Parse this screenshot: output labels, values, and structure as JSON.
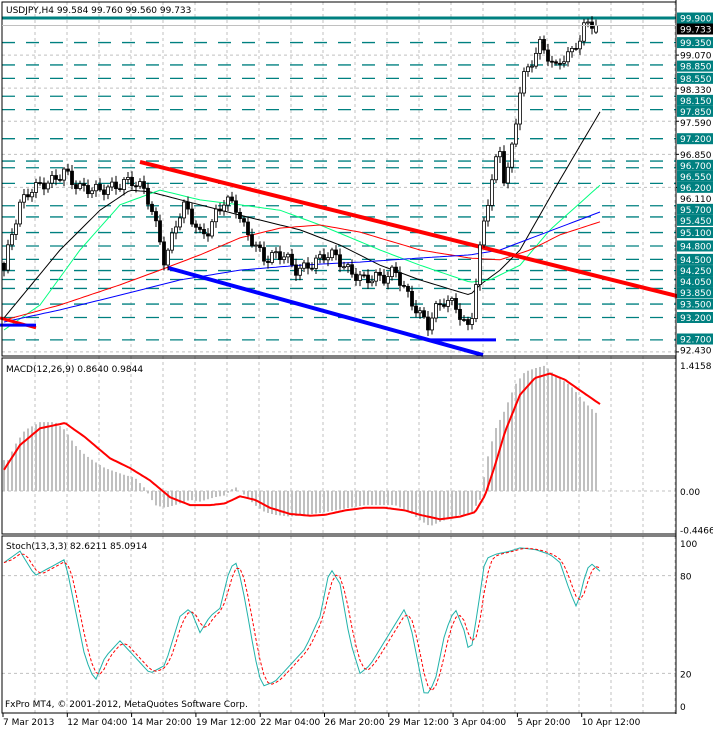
{
  "header": {
    "symbol_info": "USDJPY,H4  99.584 99.760 99.560 99.733"
  },
  "footer": {
    "copyright": "FxPro MT4, © 2001-2012, MetaQuotes Software Corp."
  },
  "colors": {
    "level": "#008080",
    "trend_red": "#ff0000",
    "trend_blue": "#0000ff",
    "ma_black": "#000000",
    "ma_green": "#00ff7f",
    "ma_red": "#ff0000",
    "ma_blue": "#0000ff",
    "histogram": "#c0c0c0",
    "stoch_main": "#20b2aa",
    "stoch_signal": "#ff0000"
  },
  "chart_data": [
    {
      "type": "candlestick",
      "title": "USDJPY,H4",
      "ohlc_last": {
        "open": 99.584,
        "high": 99.76,
        "low": 99.56,
        "close": 99.733
      },
      "current_price_label": "99.733",
      "ylim": [
        92.43,
        100.25
      ],
      "axis_ticks": [
        "99.070",
        "98.330",
        "97.590",
        "96.850",
        "96.110",
        "92.430"
      ],
      "levels": [
        "99.900",
        "99.350",
        "98.850",
        "98.550",
        "98.150",
        "97.850",
        "97.200",
        "96.700",
        "96.550",
        "96.200",
        "95.700",
        "95.450",
        "95.100",
        "94.800",
        "94.500",
        "94.250",
        "94.050",
        "93.850",
        "93.500",
        "93.200",
        "92.700"
      ],
      "close_keypoints": [
        [
          0,
          94.26
        ],
        [
          1.5,
          94.93
        ],
        [
          4,
          95.72
        ],
        [
          6.5,
          96.05
        ],
        [
          9,
          96.16
        ],
        [
          12.75,
          96.28
        ],
        [
          15.25,
          96.5
        ],
        [
          16.5,
          96.28
        ],
        [
          19,
          96.1
        ],
        [
          24,
          96.05
        ],
        [
          29,
          96.16
        ],
        [
          31.5,
          96.28
        ],
        [
          35.25,
          96.05
        ],
        [
          36.5,
          95.72
        ],
        [
          39,
          94.93
        ],
        [
          40.25,
          94.37
        ],
        [
          42.75,
          95.27
        ],
        [
          45.25,
          95.72
        ],
        [
          49,
          95.05
        ],
        [
          51.5,
          95.16
        ],
        [
          52.75,
          95.49
        ],
        [
          55.25,
          95.83
        ],
        [
          57.75,
          95.72
        ],
        [
          60.25,
          95.16
        ],
        [
          62.75,
          94.82
        ],
        [
          65.25,
          94.49
        ],
        [
          67.75,
          94.6
        ],
        [
          70.25,
          94.6
        ],
        [
          72.75,
          94.26
        ],
        [
          75.25,
          94.31
        ],
        [
          77.75,
          94.44
        ],
        [
          80.25,
          94.6
        ],
        [
          82.75,
          94.6
        ],
        [
          85.25,
          94.31
        ],
        [
          87.75,
          94.15
        ],
        [
          90.25,
          94.04
        ],
        [
          92.75,
          94.11
        ],
        [
          95.25,
          94.08
        ],
        [
          97.75,
          94.26
        ],
        [
          100.25,
          93.81
        ],
        [
          101.5,
          93.59
        ],
        [
          104,
          93.26
        ],
        [
          106,
          93.03
        ],
        [
          107.75,
          93.37
        ],
        [
          110.25,
          93.59
        ],
        [
          112.75,
          93.48
        ],
        [
          115.25,
          93.03
        ],
        [
          116.5,
          92.92
        ],
        [
          117.75,
          93.81
        ],
        [
          119,
          94.71
        ],
        [
          120.25,
          95.49
        ],
        [
          121.5,
          96.05
        ],
        [
          122.75,
          96.61
        ],
        [
          124,
          96.95
        ],
        [
          125.25,
          96.16
        ],
        [
          126.5,
          96.72
        ],
        [
          127.75,
          97.39
        ],
        [
          128.5,
          98.07
        ],
        [
          129.5,
          98.51
        ],
        [
          131.5,
          98.85
        ],
        [
          134,
          99.3
        ],
        [
          135.25,
          99.18
        ],
        [
          136.5,
          98.96
        ],
        [
          137.75,
          98.74
        ],
        [
          139,
          98.96
        ],
        [
          141.5,
          99.07
        ],
        [
          142.75,
          99.3
        ],
        [
          144,
          99.41
        ],
        [
          145.25,
          99.74
        ],
        [
          146.5,
          99.86
        ],
        [
          147.75,
          99.68
        ],
        [
          148.5,
          99.733
        ]
      ],
      "moving_averages": [
        {
          "name": "ma-black",
          "color": "#000000",
          "points": [
            [
              0,
              93.19
            ],
            [
              14,
              94.71
            ],
            [
              24,
              95.6
            ],
            [
              31.5,
              96.05
            ],
            [
              36.5,
              96.01
            ],
            [
              49,
              95.72
            ],
            [
              59,
              95.49
            ],
            [
              74,
              95.16
            ],
            [
              84,
              94.82
            ],
            [
              94,
              94.37
            ],
            [
              104,
              94.04
            ],
            [
              116.5,
              93.7
            ],
            [
              119,
              93.93
            ],
            [
              124,
              94.26
            ],
            [
              129,
              94.71
            ],
            [
              139,
              96.28
            ],
            [
              149,
              97.8
            ]
          ]
        },
        {
          "name": "ma-green",
          "color": "#00ff7f",
          "points": [
            [
              0,
              92.92
            ],
            [
              9,
              93.48
            ],
            [
              19,
              94.71
            ],
            [
              29,
              95.72
            ],
            [
              39,
              96.05
            ],
            [
              49,
              95.83
            ],
            [
              59,
              95.72
            ],
            [
              69,
              95.6
            ],
            [
              79,
              95.27
            ],
            [
              94,
              94.71
            ],
            [
              104,
              94.37
            ],
            [
              116.5,
              93.99
            ],
            [
              121.5,
              94.04
            ],
            [
              129,
              94.37
            ],
            [
              136.5,
              95.16
            ],
            [
              149,
              96.16
            ]
          ]
        },
        {
          "name": "ma-red",
          "color": "#ff0000",
          "points": [
            [
              0,
              93.14
            ],
            [
              14,
              93.48
            ],
            [
              29,
              93.93
            ],
            [
              39,
              94.26
            ],
            [
              49,
              94.6
            ],
            [
              59,
              94.98
            ],
            [
              69,
              95.2
            ],
            [
              79,
              95.27
            ],
            [
              89,
              95.11
            ],
            [
              104,
              94.71
            ],
            [
              116.5,
              94.53
            ],
            [
              124,
              94.49
            ],
            [
              131.5,
              94.71
            ],
            [
              139,
              95.05
            ],
            [
              149,
              95.34
            ]
          ]
        },
        {
          "name": "ma-blue",
          "color": "#0000ff",
          "points": [
            [
              0,
              93.1
            ],
            [
              14,
              93.37
            ],
            [
              29,
              93.7
            ],
            [
              44,
              94.04
            ],
            [
              59,
              94.26
            ],
            [
              74,
              94.37
            ],
            [
              89,
              94.44
            ],
            [
              104,
              94.53
            ],
            [
              116.5,
              94.6
            ],
            [
              124,
              94.71
            ],
            [
              134,
              95.05
            ],
            [
              149,
              95.56
            ]
          ]
        }
      ],
      "trendlines": [
        {
          "name": "resistance-trendline",
          "color": "#ff0000",
          "from": [
            34,
            96.68
          ],
          "to": [
            177.25,
            93.48
          ]
        },
        {
          "name": "support-trendline",
          "color": "#0000ff",
          "from": [
            41,
            94.31
          ],
          "to": [
            119.75,
            92.36
          ]
        },
        {
          "name": "support-horizontal",
          "color": "#0000ff",
          "from": [
            106.5,
            92.7
          ],
          "to": [
            123,
            92.7
          ]
        },
        {
          "name": "left-red-segment",
          "color": "#ff0000",
          "from": [
            -1,
            93.19
          ],
          "to": [
            8,
            92.97
          ]
        },
        {
          "name": "left-blue-segment",
          "color": "#0000ff",
          "from": [
            -1,
            93.03
          ],
          "to": [
            8,
            93.03
          ]
        }
      ]
    },
    {
      "type": "bar+line",
      "title": "MACD(12,26,9) 0.8640 0.9844",
      "ylim": [
        -0.4466,
        1.4158
      ],
      "tick_labels": [
        "1.4158",
        "0.00",
        "-0.4466"
      ],
      "histogram_keypoints": [
        [
          1,
          0.35
        ],
        [
          2.75,
          0.52
        ],
        [
          5.25,
          0.69
        ],
        [
          7.75,
          0.75
        ],
        [
          9,
          0.78
        ],
        [
          12.75,
          0.78
        ],
        [
          15.25,
          0.69
        ],
        [
          17.75,
          0.52
        ],
        [
          20.25,
          0.41
        ],
        [
          22.75,
          0.33
        ],
        [
          25.25,
          0.26
        ],
        [
          27.75,
          0.22
        ],
        [
          30.25,
          0.18
        ],
        [
          32.75,
          0.15
        ],
        [
          35.25,
          0.03
        ],
        [
          37.75,
          -0.16
        ],
        [
          40.25,
          -0.19
        ],
        [
          42.75,
          -0.16
        ],
        [
          46.5,
          -0.1
        ],
        [
          49,
          -0.12
        ],
        [
          52.75,
          -0.07
        ],
        [
          55.25,
          -0.05
        ],
        [
          57.75,
          0.05
        ],
        [
          60.25,
          -0.05
        ],
        [
          62.75,
          -0.16
        ],
        [
          65.25,
          -0.24
        ],
        [
          67.75,
          -0.27
        ],
        [
          71.5,
          -0.29
        ],
        [
          75.25,
          -0.27
        ],
        [
          79,
          -0.25
        ],
        [
          82.75,
          -0.22
        ],
        [
          86.5,
          -0.19
        ],
        [
          90.25,
          -0.16
        ],
        [
          97.75,
          -0.16
        ],
        [
          101.5,
          -0.24
        ],
        [
          104,
          -0.33
        ],
        [
          106.5,
          -0.4
        ],
        [
          109,
          -0.35
        ],
        [
          111.5,
          -0.31
        ],
        [
          114,
          -0.27
        ],
        [
          116.5,
          -0.27
        ],
        [
          119,
          -0.1
        ],
        [
          120.75,
          0.35
        ],
        [
          122.75,
          0.69
        ],
        [
          125.25,
          0.92
        ],
        [
          127.75,
          1.2
        ],
        [
          130.25,
          1.35
        ],
        [
          132.75,
          1.39
        ],
        [
          135.25,
          1.42
        ],
        [
          137.75,
          1.31
        ],
        [
          141.5,
          1.2
        ],
        [
          145.25,
          1.0
        ],
        [
          148.5,
          0.864
        ]
      ],
      "signal_keypoints": [
        [
          0,
          0.24
        ],
        [
          4,
          0.52
        ],
        [
          9,
          0.71
        ],
        [
          15.25,
          0.77
        ],
        [
          20.25,
          0.61
        ],
        [
          26.5,
          0.37
        ],
        [
          31.5,
          0.26
        ],
        [
          36.5,
          0.12
        ],
        [
          41.5,
          -0.07
        ],
        [
          46.5,
          -0.16
        ],
        [
          51.5,
          -0.16
        ],
        [
          55.25,
          -0.14
        ],
        [
          59,
          -0.06
        ],
        [
          62.75,
          -0.1
        ],
        [
          66.5,
          -0.19
        ],
        [
          71.5,
          -0.26
        ],
        [
          76.5,
          -0.28
        ],
        [
          80.25,
          -0.27
        ],
        [
          85.25,
          -0.22
        ],
        [
          90.25,
          -0.19
        ],
        [
          95.25,
          -0.19
        ],
        [
          100.25,
          -0.22
        ],
        [
          104,
          -0.27
        ],
        [
          109,
          -0.32
        ],
        [
          114,
          -0.29
        ],
        [
          117.75,
          -0.24
        ],
        [
          120.25,
          -0.05
        ],
        [
          122.75,
          0.29
        ],
        [
          125.25,
          0.67
        ],
        [
          129,
          1.09
        ],
        [
          132.75,
          1.28
        ],
        [
          136.5,
          1.33
        ],
        [
          140.25,
          1.26
        ],
        [
          144,
          1.14
        ],
        [
          149,
          0.984
        ]
      ]
    },
    {
      "type": "line",
      "title": "Stoch(13,3,3) 82.6211 85.0914",
      "ylim": [
        0,
        100
      ],
      "tick_labels": [
        "100",
        "80",
        "20",
        "0"
      ],
      "main_keypoints": [
        [
          0,
          88
        ],
        [
          4,
          95
        ],
        [
          7.75,
          80
        ],
        [
          11.5,
          85
        ],
        [
          15.25,
          90
        ],
        [
          17.75,
          60
        ],
        [
          20.25,
          30
        ],
        [
          22.75,
          15
        ],
        [
          25.25,
          30
        ],
        [
          29,
          40
        ],
        [
          32.75,
          30
        ],
        [
          36.5,
          20
        ],
        [
          40.25,
          25
        ],
        [
          44,
          55
        ],
        [
          46.5,
          60
        ],
        [
          49,
          45
        ],
        [
          51.5,
          55
        ],
        [
          54,
          60
        ],
        [
          56.5,
          85
        ],
        [
          58.25,
          88
        ],
        [
          60.25,
          65
        ],
        [
          62.75,
          30
        ],
        [
          64.5,
          12
        ],
        [
          67.75,
          15
        ],
        [
          71.5,
          25
        ],
        [
          75.25,
          35
        ],
        [
          79,
          55
        ],
        [
          81.5,
          85
        ],
        [
          84,
          75
        ],
        [
          86.5,
          40
        ],
        [
          89,
          20
        ],
        [
          91.5,
          25
        ],
        [
          94,
          35
        ],
        [
          97.75,
          50
        ],
        [
          100.25,
          60
        ],
        [
          102,
          45
        ],
        [
          105.25,
          5
        ],
        [
          107.75,
          15
        ],
        [
          110.25,
          45
        ],
        [
          112.75,
          60
        ],
        [
          115.25,
          45
        ],
        [
          116.5,
          30
        ],
        [
          118.5,
          60
        ],
        [
          120.25,
          90
        ],
        [
          122.75,
          93
        ],
        [
          126.5,
          95
        ],
        [
          129,
          97
        ],
        [
          132.75,
          96
        ],
        [
          136.5,
          93
        ],
        [
          139,
          88
        ],
        [
          141.5,
          70
        ],
        [
          143.25,
          60
        ],
        [
          145.25,
          80
        ],
        [
          146.5,
          88
        ],
        [
          149,
          82.62
        ]
      ]
    },
    {
      "type": "time_axis",
      "labels": [
        "7 Mar 2013",
        "12 Mar 04:00",
        "14 Mar 20:00",
        "19 Mar 12:00",
        "22 Mar 04:00",
        "26 Mar 20:00",
        "29 Mar 12:00",
        "3 Apr 04:00",
        "5 Apr 20:00",
        "10 Apr 12:00"
      ]
    }
  ]
}
